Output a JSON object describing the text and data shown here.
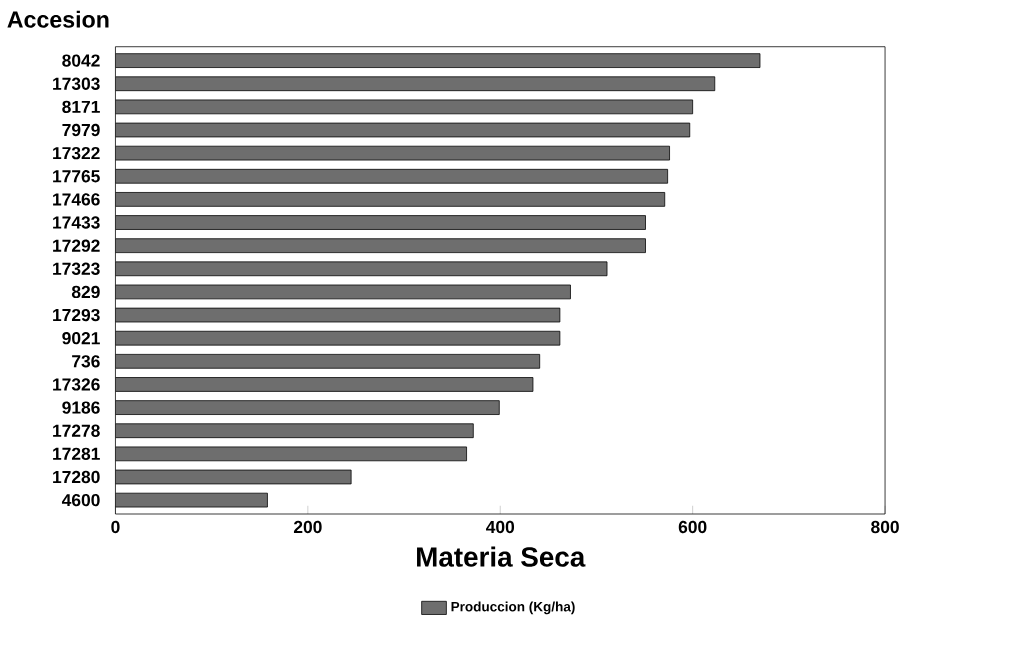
{
  "chart_data": {
    "type": "bar",
    "orientation": "horizontal",
    "ylabel": "Accesion",
    "xlabel": "Materia Seca",
    "categories": [
      "8042",
      "17303",
      "8171",
      "7979",
      "17322",
      "17765",
      "17466",
      "17433",
      "17292",
      "17323",
      "829",
      "17293",
      "9021",
      "736",
      "17326",
      "9186",
      "17278",
      "17281",
      "17280",
      "4600"
    ],
    "series": [
      {
        "name": "Produccion (Kg/ha)",
        "color": "#6e6e6e",
        "values": [
          670,
          623,
          600,
          597,
          576,
          574,
          571,
          551,
          551,
          511,
          473,
          462,
          462,
          441,
          434,
          399,
          372,
          365,
          245,
          158
        ]
      }
    ],
    "xlim": [
      0,
      800
    ],
    "xticks": [
      0,
      200,
      400,
      600,
      800
    ],
    "grid": false,
    "legend": "bottom"
  }
}
